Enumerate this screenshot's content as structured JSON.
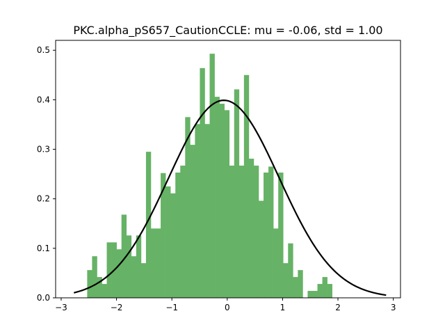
{
  "chart_data": {
    "type": "bar",
    "title": "PKC.alpha_pS657_CautionCCLE: mu = -0.06, std = 1.00",
    "xlabel": "",
    "ylabel": "",
    "xlim": [
      -3.1,
      3.13
    ],
    "ylim": [
      0,
      0.52
    ],
    "xticks": [
      -3,
      -2,
      -1,
      0,
      1,
      2,
      3
    ],
    "xtick_labels": [
      "−3",
      "−2",
      "−1",
      "0",
      "1",
      "2",
      "3"
    ],
    "yticks": [
      0.0,
      0.1,
      0.2,
      0.3,
      0.4,
      0.5
    ],
    "ytick_labels": [
      "0.0",
      "0.1",
      "0.2",
      "0.3",
      "0.4",
      "0.5"
    ],
    "grid": false,
    "histogram": {
      "bin_start": -2.53,
      "bin_width": 0.0885,
      "density": [
        0.056,
        0.084,
        0.042,
        0.028,
        0.112,
        0.112,
        0.098,
        0.168,
        0.126,
        0.084,
        0.126,
        0.07,
        0.295,
        0.14,
        0.14,
        0.252,
        0.225,
        0.211,
        0.253,
        0.267,
        0.365,
        0.309,
        0.351,
        0.464,
        0.351,
        0.493,
        0.406,
        0.392,
        0.379,
        0.267,
        0.421,
        0.267,
        0.45,
        0.281,
        0.267,
        0.196,
        0.253,
        0.265,
        0.14,
        0.253,
        0.07,
        0.11,
        0.042,
        0.056,
        0.0,
        0.014,
        0.014,
        0.028,
        0.042,
        0.028
      ],
      "color": "#66b266"
    },
    "fit_curve": {
      "mu": -0.06,
      "std": 1.0,
      "x_range": [
        -2.77,
        2.87
      ],
      "color": "#000000"
    }
  }
}
